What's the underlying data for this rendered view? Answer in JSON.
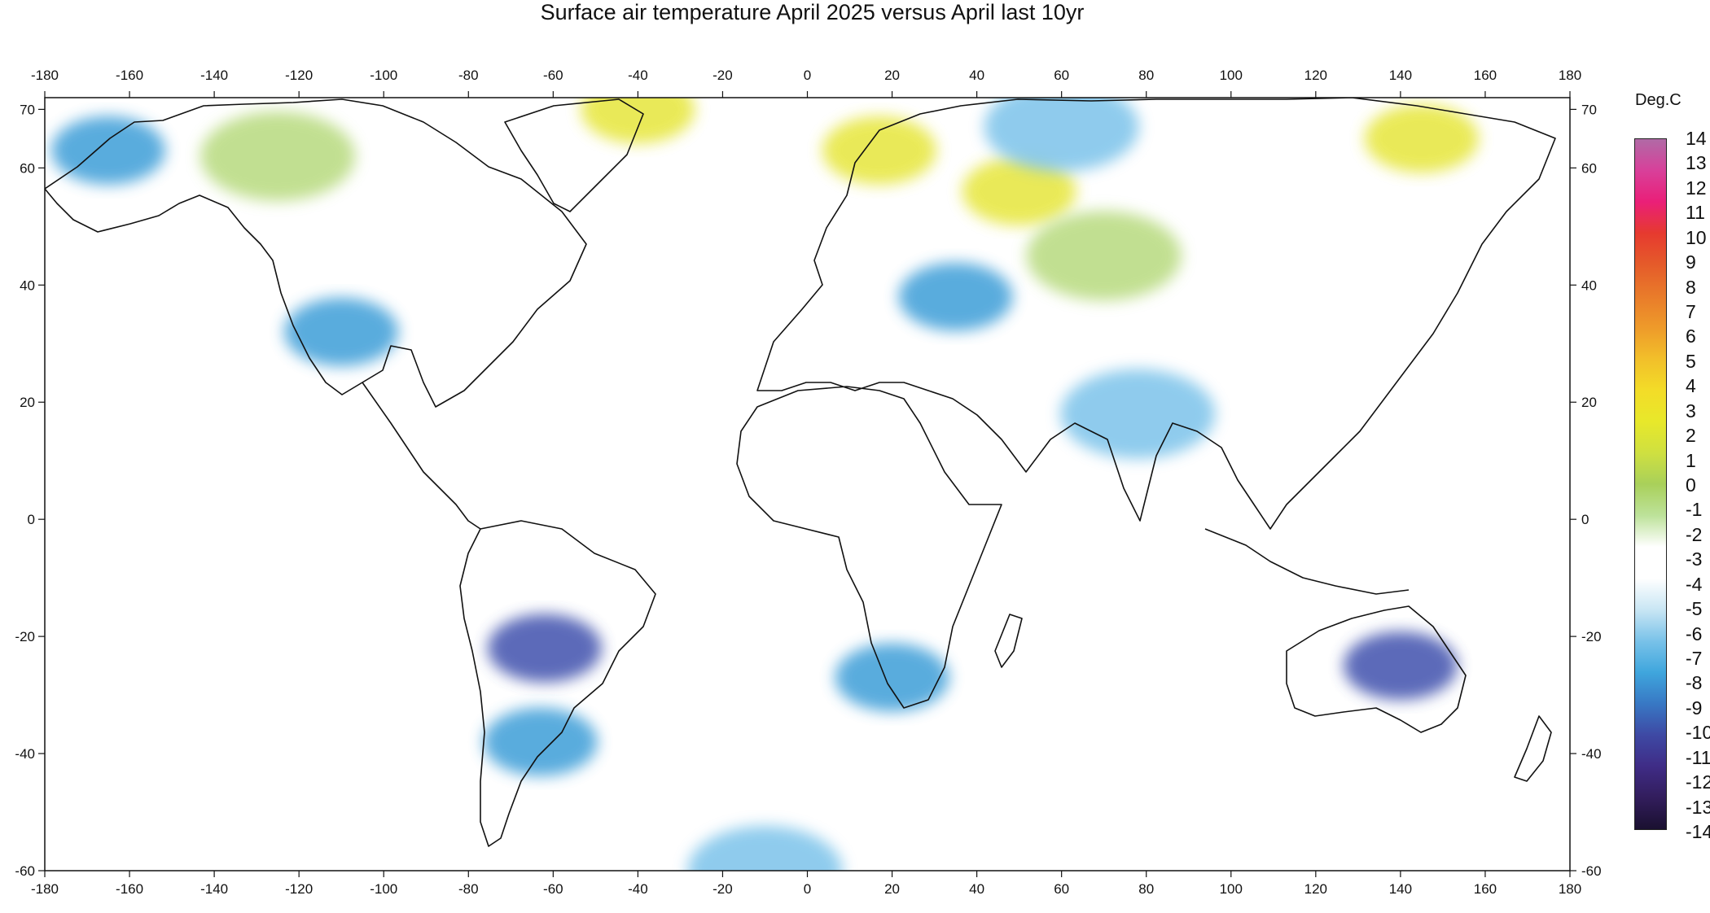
{
  "title": "Surface air temperature April 2025 versus April last 10yr",
  "lon_ticks": [
    "-180",
    "-160",
    "-140",
    "-120",
    "-100",
    "-80",
    "-60",
    "-40",
    "-20",
    "0",
    "20",
    "40",
    "60",
    "80",
    "100",
    "120",
    "140",
    "160",
    "180"
  ],
  "lat_ticks": [
    "70",
    "60",
    "40",
    "20",
    "0",
    "-20",
    "-40",
    "-60"
  ],
  "colorbar": {
    "title": "Deg.C",
    "labels": [
      "14",
      "13",
      "12",
      "11",
      "10",
      "9",
      "8",
      "7",
      "6",
      "5",
      "4",
      "3",
      "2",
      "1",
      "0",
      "-1",
      "-2",
      "-3",
      "-4",
      "-5",
      "-6",
      "-7",
      "-8",
      "-9",
      "-10",
      "-11",
      "-12",
      "-13",
      "-14"
    ],
    "colors": [
      "#b06aa6",
      "#d8409a",
      "#ea1f78",
      "#e63a2f",
      "#e55b2a",
      "#e97b2a",
      "#ee9a2a",
      "#f2bf2a",
      "#f3dc28",
      "#e8e82a",
      "#cfe040",
      "#a9d05a",
      "#bde29a",
      "#ffffff",
      "#ffffff",
      "#c9e6f4",
      "#79c2e9",
      "#3fa6dd",
      "#3878c4",
      "#3e49a4",
      "#3f2c86",
      "#321d5c",
      "#1a1030"
    ]
  },
  "anomaly_colors": {
    "cold_1": "#c8e4f3",
    "cold_2": "#7cc3ea",
    "cold_3": "#3c9ed8",
    "cold_4": "#3f51ad",
    "warm_1": "#dfeec5",
    "warm_2": "#b7da7e",
    "warm_3": "#e6e63a"
  },
  "chart_data": {
    "type": "heatmap",
    "title": "Surface air temperature April 2025 versus April last 10yr",
    "xlim": [
      -180,
      180
    ],
    "ylim": [
      -60,
      72
    ],
    "colorbar_range": [
      -14,
      14
    ],
    "colorbar_unit": "Deg.C",
    "anomaly_regions": [
      {
        "lon": -165,
        "lat": 63,
        "level": "cold_3"
      },
      {
        "lon": -125,
        "lat": 62,
        "level": "warm_2"
      },
      {
        "lon": -110,
        "lat": 32,
        "level": "cold_3"
      },
      {
        "lon": -62,
        "lat": -22,
        "level": "cold_4"
      },
      {
        "lon": -63,
        "lat": -38,
        "level": "cold_3"
      },
      {
        "lon": -40,
        "lat": 70,
        "level": "warm_3"
      },
      {
        "lon": 17,
        "lat": 63,
        "level": "warm_3"
      },
      {
        "lon": 50,
        "lat": 56,
        "level": "warm_3"
      },
      {
        "lon": 70,
        "lat": 45,
        "level": "warm_2"
      },
      {
        "lon": 145,
        "lat": 65,
        "level": "warm_3"
      },
      {
        "lon": 60,
        "lat": 67,
        "level": "cold_2"
      },
      {
        "lon": 20,
        "lat": -27,
        "level": "cold_3"
      },
      {
        "lon": 140,
        "lat": -25,
        "level": "cold_4"
      },
      {
        "lon": 35,
        "lat": 38,
        "level": "cold_3"
      },
      {
        "lon": 78,
        "lat": 18,
        "level": "cold_2"
      },
      {
        "lon": -10,
        "lat": -60,
        "level": "cold_2"
      }
    ]
  }
}
